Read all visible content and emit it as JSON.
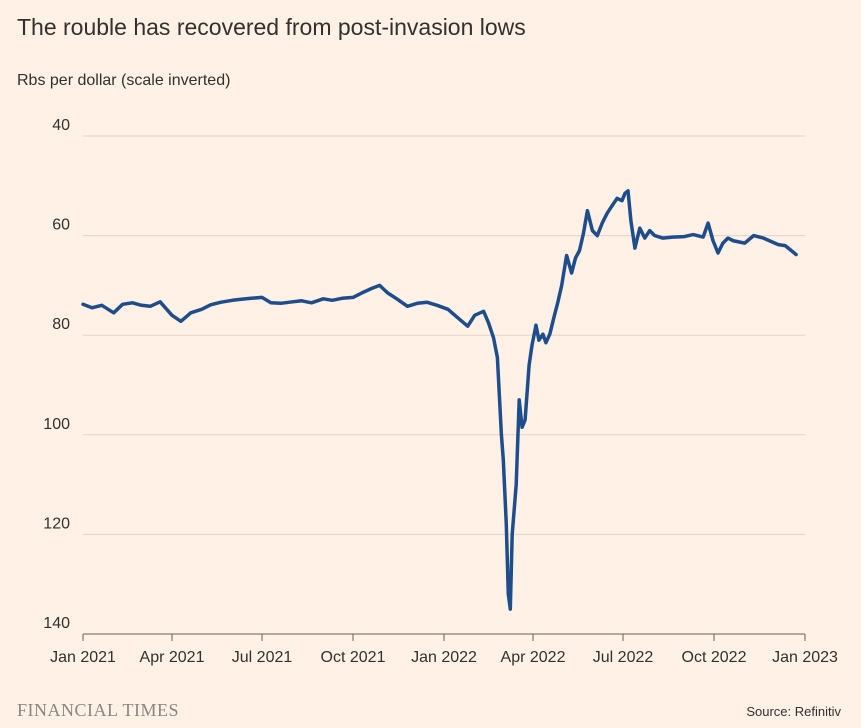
{
  "title": "The rouble has recovered from post-invasion lows",
  "subtitle": "Rbs per dollar (scale inverted)",
  "brand": "FINANCIAL TIMES",
  "source": "Source: Refinitiv",
  "chart_data": {
    "type": "line",
    "ylabel": "Rbs per dollar (scale inverted)",
    "y_inverted": true,
    "ylim": [
      40,
      140
    ],
    "yticks": [
      40,
      60,
      80,
      100,
      120,
      140
    ],
    "xticks": [
      "Jan 2021",
      "Apr 2021",
      "Jul 2021",
      "Oct 2021",
      "Jan 2022",
      "Apr 2022",
      "Jul 2022",
      "Oct 2022",
      "Jan 2023"
    ],
    "grid": true,
    "line_color": "#1e4d8c",
    "series": [
      {
        "x": [
          "2021-01-01",
          "2021-01-10",
          "2021-01-20",
          "2021-02-01",
          "2021-02-10",
          "2021-02-20",
          "2021-03-01",
          "2021-03-10",
          "2021-03-20",
          "2021-04-01",
          "2021-04-10",
          "2021-04-20",
          "2021-05-01",
          "2021-05-10",
          "2021-05-20",
          "2021-06-01",
          "2021-06-10",
          "2021-06-20",
          "2021-07-01",
          "2021-07-10",
          "2021-07-20",
          "2021-08-01",
          "2021-08-10",
          "2021-08-20",
          "2021-09-01",
          "2021-09-10",
          "2021-09-20",
          "2021-10-01",
          "2021-10-10",
          "2021-10-20",
          "2021-10-28",
          "2021-11-05",
          "2021-11-15",
          "2021-11-25",
          "2021-12-05",
          "2021-12-15",
          "2021-12-25",
          "2022-01-05",
          "2022-01-15",
          "2022-01-25",
          "2022-02-01",
          "2022-02-10",
          "2022-02-15",
          "2022-02-20",
          "2022-02-24",
          "2022-02-28",
          "2022-03-02",
          "2022-03-05",
          "2022-03-07",
          "2022-03-09",
          "2022-03-11",
          "2022-03-15",
          "2022-03-18",
          "2022-03-21",
          "2022-03-24",
          "2022-03-28",
          "2022-03-31",
          "2022-04-04",
          "2022-04-07",
          "2022-04-11",
          "2022-04-14",
          "2022-04-18",
          "2022-04-22",
          "2022-04-26",
          "2022-04-30",
          "2022-05-05",
          "2022-05-10",
          "2022-05-14",
          "2022-05-18",
          "2022-05-22",
          "2022-05-26",
          "2022-05-31",
          "2022-06-05",
          "2022-06-10",
          "2022-06-15",
          "2022-06-20",
          "2022-06-25",
          "2022-06-30",
          "2022-07-03",
          "2022-07-06",
          "2022-07-09",
          "2022-07-13",
          "2022-07-18",
          "2022-07-23",
          "2022-07-28",
          "2022-08-02",
          "2022-08-10",
          "2022-08-20",
          "2022-09-01",
          "2022-09-10",
          "2022-09-20",
          "2022-09-25",
          "2022-09-30",
          "2022-10-05",
          "2022-10-10",
          "2022-10-15",
          "2022-10-20",
          "2022-11-01",
          "2022-11-10",
          "2022-11-20",
          "2022-11-28",
          "2022-12-05",
          "2022-12-12",
          "2022-12-18",
          "2022-12-23"
        ],
        "y": [
          73.8,
          74.5,
          74.0,
          75.5,
          73.8,
          73.5,
          74.0,
          74.2,
          73.3,
          76.0,
          77.2,
          75.5,
          74.8,
          73.9,
          73.4,
          73.0,
          72.8,
          72.6,
          72.4,
          73.5,
          73.6,
          73.3,
          73.1,
          73.5,
          72.7,
          73.0,
          72.6,
          72.4,
          71.5,
          70.6,
          70.0,
          71.5,
          72.8,
          74.2,
          73.6,
          73.4,
          74.0,
          74.8,
          76.5,
          78.2,
          76.0,
          75.2,
          77.5,
          80.5,
          84.5,
          100.0,
          105.0,
          118.0,
          132.0,
          135.0,
          120.0,
          110.0,
          93.0,
          98.5,
          97.0,
          86.0,
          82.0,
          78.0,
          81.0,
          79.8,
          81.5,
          79.8,
          76.5,
          73.5,
          70.0,
          64.0,
          67.5,
          64.5,
          63.0,
          59.5,
          55.0,
          59.0,
          60.0,
          57.5,
          55.5,
          54.0,
          52.5,
          53.0,
          51.5,
          51.0,
          57.0,
          62.5,
          58.5,
          60.5,
          59.0,
          60.0,
          60.5,
          60.3,
          60.2,
          59.8,
          60.3,
          57.5,
          61.0,
          63.5,
          61.5,
          60.5,
          61.0,
          61.5,
          60.0,
          60.5,
          61.2,
          61.8,
          62.0,
          63.0,
          63.8
        ]
      }
    ]
  }
}
